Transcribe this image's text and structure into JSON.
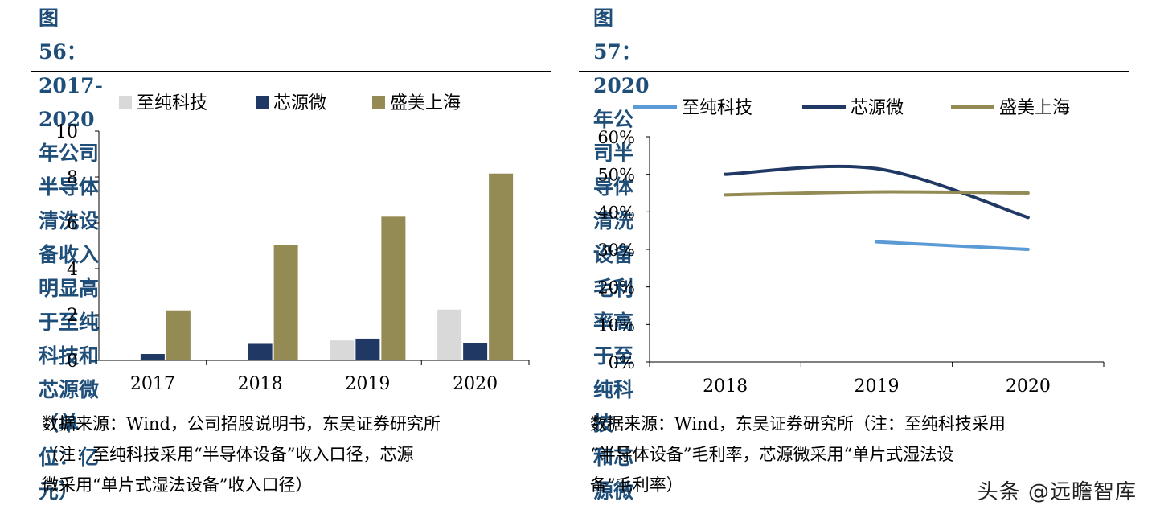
{
  "left": {
    "title_line1": "图 56：2017-2020 年公司半导体清洗设备收入明显高",
    "title_line2": "于至纯科技和芯源微（单位：亿元）",
    "source_lines": [
      "数据来源：Wind，公司招股说明书，东吴证券研究所",
      "（注：至纯科技采用“半导体设备”收入口径，芯源",
      "微采用“单片式湿法设备”收入口径）"
    ]
  },
  "right": {
    "title_line1": "图 57：2020 年公司半导体清洗设备毛利率高于至纯科技",
    "title_line2": "和芯源微",
    "source_lines": [
      "数据来源：Wind，东吴证券研究所（注：至纯科技采用",
      "“半导体设备”毛利率，芯源微采用“单片式湿法设",
      "备”毛利率）"
    ]
  },
  "watermark": "头条 @远瞻智库",
  "chart_data": [
    {
      "type": "bar",
      "categories": [
        "2017",
        "2018",
        "2019",
        "2020"
      ],
      "series": [
        {
          "name": "至纯科技",
          "color": "#d9d9d9",
          "values": [
            null,
            null,
            0.87,
            2.22
          ]
        },
        {
          "name": "芯源微",
          "color": "#1f3864",
          "values": [
            0.28,
            0.72,
            0.95,
            0.77
          ]
        },
        {
          "name": "盛美上海",
          "color": "#948a54",
          "values": [
            2.15,
            5.02,
            6.27,
            8.15
          ]
        }
      ],
      "ylim": [
        0,
        10
      ],
      "yticks": [
        "0",
        "2",
        "4",
        "6",
        "8",
        "10"
      ],
      "legend": "top",
      "grid": false
    },
    {
      "type": "line",
      "categories": [
        "2018",
        "2019",
        "2020"
      ],
      "series": [
        {
          "name": "至纯科技",
          "color": "#5b9bd5",
          "values": [
            null,
            32,
            30
          ]
        },
        {
          "name": "芯源微",
          "color": "#1f3864",
          "values": [
            50,
            51.5,
            38.5
          ]
        },
        {
          "name": "盛美上海",
          "color": "#948a54",
          "values": [
            44.5,
            45.3,
            45
          ]
        }
      ],
      "ylim": [
        0,
        60
      ],
      "yticks": [
        "0%",
        "10%",
        "20%",
        "30%",
        "40%",
        "50%",
        "60%"
      ],
      "legend": "top",
      "grid": false
    }
  ]
}
